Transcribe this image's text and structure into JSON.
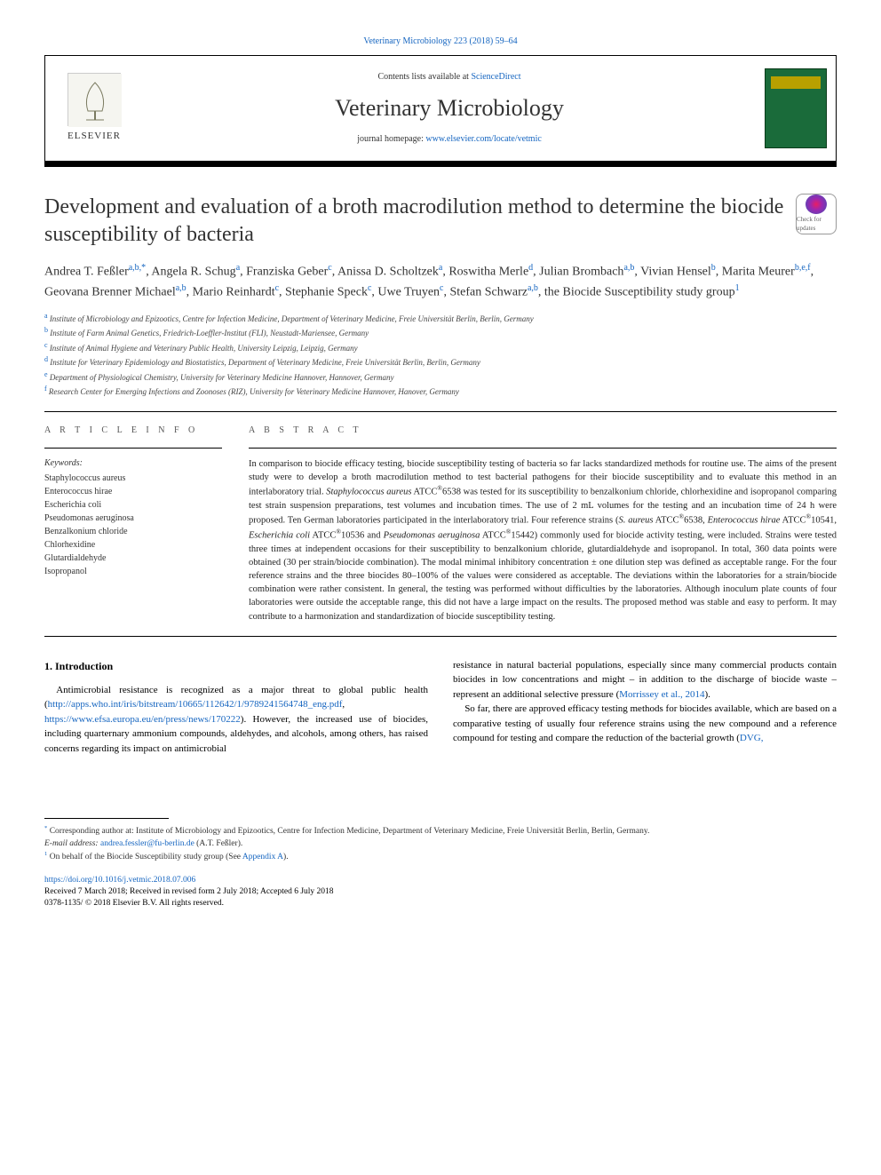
{
  "top_link": "Veterinary Microbiology 223 (2018) 59–64",
  "header": {
    "contents_prefix": "Contents lists available at ",
    "contents_link": "ScienceDirect",
    "journal_name": "Veterinary Microbiology",
    "homepage_prefix": "journal homepage: ",
    "homepage_link": "www.elsevier.com/locate/vetmic",
    "elsevier_label": "ELSEVIER"
  },
  "check_updates_label": "Check for updates",
  "title": "Development and evaluation of a broth macrodilution method to determine the biocide susceptibility of bacteria",
  "authors_html": "Andrea T. Feßler<sup>a,b,*</sup>, Angela R. Schug<sup>a</sup>, Franziska Geber<sup>c</sup>, Anissa D. Scholtzek<sup>a</sup>, Roswitha Merle<sup>d</sup>, Julian Brombach<sup>a,b</sup>, Vivian Hensel<sup>b</sup>, Marita Meurer<sup>b,e,f</sup>, Geovana Brenner Michael<sup>a,b</sup>, Mario Reinhardt<sup>c</sup>, Stephanie Speck<sup>c</sup>, Uwe Truyen<sup>c</sup>, Stefan Schwarz<sup>a,b</sup>, the Biocide Susceptibility study group<sup>1</sup>",
  "affiliations": [
    {
      "sup": "a",
      "text": "Institute of Microbiology and Epizootics, Centre for Infection Medicine, Department of Veterinary Medicine, Freie Universität Berlin, Berlin, Germany"
    },
    {
      "sup": "b",
      "text": "Institute of Farm Animal Genetics, Friedrich-Loeffler-Institut (FLI), Neustadt-Mariensee, Germany"
    },
    {
      "sup": "c",
      "text": "Institute of Animal Hygiene and Veterinary Public Health, University Leipzig, Leipzig, Germany"
    },
    {
      "sup": "d",
      "text": "Institute for Veterinary Epidemiology and Biostatistics, Department of Veterinary Medicine, Freie Universität Berlin, Berlin, Germany"
    },
    {
      "sup": "e",
      "text": "Department of Physiological Chemistry, University for Veterinary Medicine Hannover, Hannover, Germany"
    },
    {
      "sup": "f",
      "text": "Research Center for Emerging Infections and Zoonoses (RIZ), University for Veterinary Medicine Hannover, Hanover, Germany"
    }
  ],
  "article_info_heading": "A R T I C L E  I N F O",
  "keywords_label": "Keywords:",
  "keywords": [
    "Staphylococcus aureus",
    "Enterococcus hirae",
    "Escherichia coli",
    "Pseudomonas aeruginosa",
    "Benzalkonium chloride",
    "Chlorhexidine",
    "Glutardialdehyde",
    "Isopropanol"
  ],
  "abstract_heading": "A B S T R A C T",
  "abstract_html": "In comparison to biocide efficacy testing, biocide susceptibility testing of bacteria so far lacks standardized methods for routine use. The aims of the present study were to develop a broth macrodilution method to test bacterial pathogens for their biocide susceptibility and to evaluate this method in an interlaboratory trial. <i>Staphylococcus aureus</i> ATCC<sup>®</sup>6538 was tested for its susceptibility to benzalkonium chloride, chlorhexidine and isopropanol comparing test strain suspension preparations, test volumes and incubation times. The use of 2 mL volumes for the testing and an incubation time of 24 h were proposed. Ten German laboratories participated in the interlaboratory trial. Four reference strains (<i>S. aureus</i> ATCC<sup>®</sup>6538, <i>Enterococcus hirae</i> ATCC<sup>®</sup>10541, <i>Escherichia coli</i> ATCC<sup>®</sup>10536 and <i>Pseudomonas aeruginosa</i> ATCC<sup>®</sup>15442) commonly used for biocide activity testing, were included. Strains were tested three times at independent occasions for their susceptibility to benzalkonium chloride, glutardialdehyde and isopropanol. In total, 360 data points were obtained (30 per strain/biocide combination). The modal minimal inhibitory concentration ± one dilution step was defined as acceptable range. For the four reference strains and the three biocides 80–100% of the values were considered as acceptable. The deviations within the laboratories for a strain/biocide combination were rather consistent. In general, the testing was performed without difficulties by the laboratories. Although inoculum plate counts of four laboratories were outside the acceptable range, this did not have a large impact on the results. The proposed method was stable and easy to perform. It may contribute to a harmonization and standardization of biocide susceptibility testing.",
  "intro_heading": "1. Introduction",
  "intro_left": "Antimicrobial resistance is recognized as a major threat to global public health (<a href='#'>http://apps.who.int/iris/bitstream/10665/112642/1/9789241564748_eng.pdf</a>, <a href='#'>https://www.efsa.europa.eu/en/press/news/170222</a>). However, the increased use of biocides, including quarternary ammonium compounds, aldehydes, and alcohols, among others, has raised concerns regarding its impact on antimicrobial",
  "intro_right_1": "resistance in natural bacterial populations, especially since many commercial products contain biocides in low concentrations and might – in addition to the discharge of biocide waste – represent an additional selective pressure (<a href='#'>Morrissey et al., 2014</a>).",
  "intro_right_2": "So far, there are approved efficacy testing methods for biocides available, which are based on a comparative testing of usually four reference strains using the new compound and a reference compound for testing and compare the reduction of the bacterial growth (<a href='#'>DVG,</a>",
  "footnotes": {
    "corr": "Corresponding author at: Institute of Microbiology and Epizootics, Centre for Infection Medicine, Department of Veterinary Medicine, Freie Universität Berlin, Berlin, Germany.",
    "email_label": "E-mail address: ",
    "email_link": "andrea.fessler@fu-berlin.de",
    "email_suffix": " (A.T. Feßler).",
    "note1": "On behalf of the Biocide Susceptibility study group (See ",
    "note1_link": "Appendix A",
    "note1_suffix": ")."
  },
  "doi": {
    "link": "https://doi.org/10.1016/j.vetmic.2018.07.006",
    "received": "Received 7 March 2018; Received in revised form 2 July 2018; Accepted 6 July 2018",
    "copyright": "0378-1135/ © 2018 Elsevier B.V. All rights reserved."
  },
  "colors": {
    "link": "#1565c0",
    "text": "#222222",
    "rule": "#000000",
    "cover_bg": "#1a6b3a"
  }
}
